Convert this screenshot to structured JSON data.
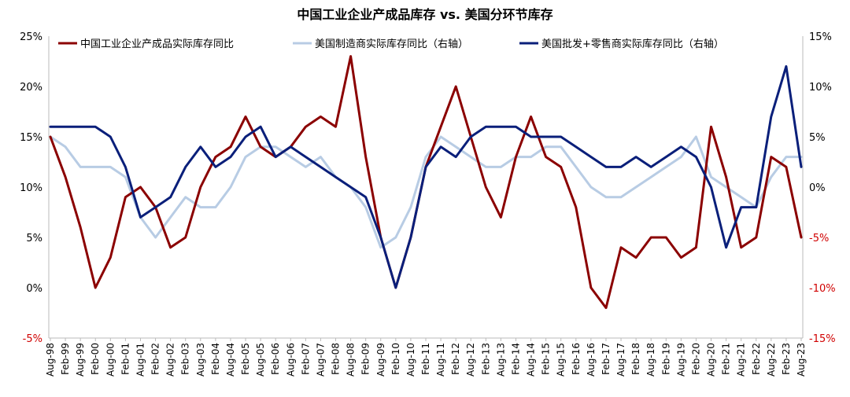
{
  "chart_data": {
    "type": "line",
    "title": "中国工业企业产成品库存 vs. 美国分环节库存",
    "y_left": {
      "ticks": [
        "25%",
        "20%",
        "15%",
        "10%",
        "5%",
        "0%",
        "-5%"
      ],
      "range": [
        -5,
        25
      ]
    },
    "y_right": {
      "ticks": [
        "15%",
        "10%",
        "5%",
        "0%",
        "-5%",
        "-10%",
        "-15%"
      ],
      "range": [
        -15,
        15
      ]
    },
    "x_ticks": [
      "Aug-98",
      "Feb-99",
      "Aug-99",
      "Feb-00",
      "Aug-00",
      "Feb-01",
      "Aug-01",
      "Feb-02",
      "Aug-02",
      "Feb-03",
      "Aug-03",
      "Feb-04",
      "Aug-04",
      "Feb-05",
      "Aug-05",
      "Feb-06",
      "Aug-06",
      "Feb-07",
      "Aug-07",
      "Feb-08",
      "Aug-08",
      "Feb-09",
      "Aug-09",
      "Feb-10",
      "Aug-10",
      "Feb-11",
      "Aug-11",
      "Feb-12",
      "Aug-12",
      "Feb-13",
      "Aug-13",
      "Feb-14",
      "Aug-14",
      "Feb-15",
      "Aug-15",
      "Feb-16",
      "Aug-16",
      "Feb-17",
      "Aug-17",
      "Feb-18",
      "Aug-18",
      "Feb-19",
      "Aug-19",
      "Feb-20",
      "Aug-20",
      "Feb-21",
      "Aug-21",
      "Feb-22",
      "Aug-22",
      "Feb-23",
      "Aug-23"
    ],
    "legend_placement": "top",
    "series": [
      {
        "name": "中国工业企业产成品实际库存同比",
        "axis": "left",
        "color": "#8b0000",
        "points": [
          [
            "Aug-98",
            15
          ],
          [
            "Feb-99",
            11
          ],
          [
            "Aug-99",
            6
          ],
          [
            "Feb-00",
            0
          ],
          [
            "Aug-00",
            3
          ],
          [
            "Feb-01",
            9
          ],
          [
            "Aug-01",
            10
          ],
          [
            "Feb-02",
            8
          ],
          [
            "Aug-02",
            4
          ],
          [
            "Feb-03",
            5
          ],
          [
            "Aug-03",
            10
          ],
          [
            "Feb-04",
            13
          ],
          [
            "Aug-04",
            14
          ],
          [
            "Feb-05",
            17
          ],
          [
            "Aug-05",
            14
          ],
          [
            "Feb-06",
            13
          ],
          [
            "Aug-06",
            14
          ],
          [
            "Feb-07",
            16
          ],
          [
            "Aug-07",
            17
          ],
          [
            "Feb-08",
            16
          ],
          [
            "Aug-08",
            23
          ],
          [
            "Feb-09",
            13
          ],
          [
            "Aug-09",
            5
          ],
          [
            "Feb-10",
            0
          ],
          [
            "Aug-10",
            5
          ],
          [
            "Feb-11",
            12
          ],
          [
            "Aug-11",
            16
          ],
          [
            "Feb-12",
            20
          ],
          [
            "Aug-12",
            15
          ],
          [
            "Feb-13",
            10
          ],
          [
            "Aug-13",
            7
          ],
          [
            "Feb-14",
            13
          ],
          [
            "Aug-14",
            17
          ],
          [
            "Feb-15",
            13
          ],
          [
            "Aug-15",
            12
          ],
          [
            "Feb-16",
            8
          ],
          [
            "Aug-16",
            0
          ],
          [
            "Feb-17",
            -2
          ],
          [
            "Aug-17",
            4
          ],
          [
            "Feb-18",
            3
          ],
          [
            "Aug-18",
            5
          ],
          [
            "Feb-19",
            5
          ],
          [
            "Aug-19",
            3
          ],
          [
            "Feb-20",
            4
          ],
          [
            "Aug-20",
            16
          ],
          [
            "Feb-21",
            11
          ],
          [
            "Aug-21",
            4
          ],
          [
            "Feb-22",
            5
          ],
          [
            "Aug-22",
            13
          ],
          [
            "Feb-23",
            12
          ],
          [
            "Aug-23",
            5
          ]
        ]
      },
      {
        "name": "美国制造商实际库存同比（右轴）",
        "axis": "right",
        "color": "#b8cce4",
        "points": [
          [
            "Aug-98",
            5
          ],
          [
            "Feb-99",
            4
          ],
          [
            "Aug-99",
            2
          ],
          [
            "Feb-00",
            2
          ],
          [
            "Aug-00",
            2
          ],
          [
            "Feb-01",
            1
          ],
          [
            "Aug-01",
            -3
          ],
          [
            "Feb-02",
            -5
          ],
          [
            "Aug-02",
            -3
          ],
          [
            "Feb-03",
            -1
          ],
          [
            "Aug-03",
            -2
          ],
          [
            "Feb-04",
            -2
          ],
          [
            "Aug-04",
            0
          ],
          [
            "Feb-05",
            3
          ],
          [
            "Aug-05",
            4
          ],
          [
            "Feb-06",
            4
          ],
          [
            "Aug-06",
            3
          ],
          [
            "Feb-07",
            2
          ],
          [
            "Aug-07",
            3
          ],
          [
            "Feb-08",
            1
          ],
          [
            "Aug-08",
            0
          ],
          [
            "Feb-09",
            -2
          ],
          [
            "Aug-09",
            -6
          ],
          [
            "Feb-10",
            -5
          ],
          [
            "Aug-10",
            -2
          ],
          [
            "Feb-11",
            3
          ],
          [
            "Aug-11",
            5
          ],
          [
            "Feb-12",
            4
          ],
          [
            "Aug-12",
            3
          ],
          [
            "Feb-13",
            2
          ],
          [
            "Aug-13",
            2
          ],
          [
            "Feb-14",
            3
          ],
          [
            "Aug-14",
            3
          ],
          [
            "Feb-15",
            4
          ],
          [
            "Aug-15",
            4
          ],
          [
            "Feb-16",
            2
          ],
          [
            "Aug-16",
            0
          ],
          [
            "Feb-17",
            -1
          ],
          [
            "Aug-17",
            -1
          ],
          [
            "Feb-18",
            0
          ],
          [
            "Aug-18",
            1
          ],
          [
            "Feb-19",
            2
          ],
          [
            "Aug-19",
            3
          ],
          [
            "Feb-20",
            5
          ],
          [
            "Aug-20",
            1
          ],
          [
            "Feb-21",
            0
          ],
          [
            "Aug-21",
            -1
          ],
          [
            "Feb-22",
            -2
          ],
          [
            "Aug-22",
            1
          ],
          [
            "Feb-23",
            3
          ],
          [
            "Aug-23",
            3
          ]
        ]
      },
      {
        "name": "美国批发+零售商实际库存同比（右轴）",
        "axis": "right",
        "color": "#0a1f7a",
        "points": [
          [
            "Aug-98",
            6
          ],
          [
            "Feb-99",
            6
          ],
          [
            "Aug-99",
            6
          ],
          [
            "Feb-00",
            6
          ],
          [
            "Aug-00",
            5
          ],
          [
            "Feb-01",
            2
          ],
          [
            "Aug-01",
            -3
          ],
          [
            "Feb-02",
            -2
          ],
          [
            "Aug-02",
            -1
          ],
          [
            "Feb-03",
            2
          ],
          [
            "Aug-03",
            4
          ],
          [
            "Feb-04",
            2
          ],
          [
            "Aug-04",
            3
          ],
          [
            "Feb-05",
            5
          ],
          [
            "Aug-05",
            6
          ],
          [
            "Feb-06",
            3
          ],
          [
            "Aug-06",
            4
          ],
          [
            "Feb-07",
            3
          ],
          [
            "Aug-07",
            2
          ],
          [
            "Feb-08",
            1
          ],
          [
            "Aug-08",
            0
          ],
          [
            "Feb-09",
            -1
          ],
          [
            "Aug-09",
            -5
          ],
          [
            "Feb-10",
            -10
          ],
          [
            "Aug-10",
            -5
          ],
          [
            "Feb-11",
            2
          ],
          [
            "Aug-11",
            4
          ],
          [
            "Feb-12",
            3
          ],
          [
            "Aug-12",
            5
          ],
          [
            "Feb-13",
            6
          ],
          [
            "Aug-13",
            6
          ],
          [
            "Feb-14",
            6
          ],
          [
            "Aug-14",
            5
          ],
          [
            "Feb-15",
            5
          ],
          [
            "Aug-15",
            5
          ],
          [
            "Feb-16",
            4
          ],
          [
            "Aug-16",
            3
          ],
          [
            "Feb-17",
            2
          ],
          [
            "Aug-17",
            2
          ],
          [
            "Feb-18",
            3
          ],
          [
            "Aug-18",
            2
          ],
          [
            "Feb-19",
            3
          ],
          [
            "Aug-19",
            4
          ],
          [
            "Feb-20",
            3
          ],
          [
            "Aug-20",
            0
          ],
          [
            "Feb-21",
            -6
          ],
          [
            "Aug-21",
            -2
          ],
          [
            "Feb-22",
            -2
          ],
          [
            "Aug-22",
            7
          ],
          [
            "Feb-23",
            12
          ],
          [
            "Aug-23",
            2
          ]
        ]
      }
    ]
  }
}
